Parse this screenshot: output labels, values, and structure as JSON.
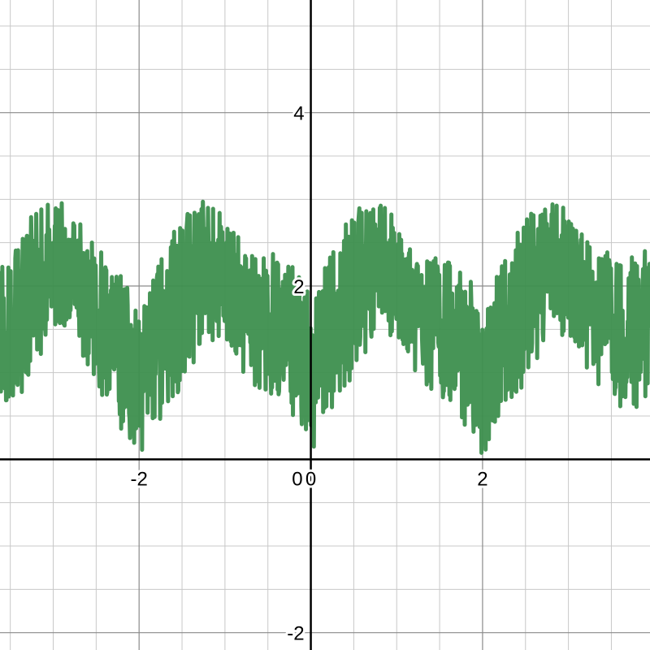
{
  "chart_data": {
    "type": "line",
    "title": "",
    "xlabel": "",
    "ylabel": "",
    "xlim": [
      -3.62,
      3.95
    ],
    "ylim": [
      -2.2,
      5.3
    ],
    "grid": true,
    "grid_minor_step": 0.5,
    "grid_major_step": 2,
    "x_tick_labels": [
      "-2",
      "0",
      "2"
    ],
    "y_tick_labels": [
      "-2",
      "2",
      "4"
    ],
    "origin_label": "0",
    "colors": {
      "series": "#3d8f4e",
      "axis": "#000000",
      "grid_major": "#8a8a8a",
      "grid_minor": "#c8c8c8"
    },
    "series": [
      {
        "name": "",
        "period": 2,
        "x": [
          -3.62,
          -3.5,
          -3.35,
          -3.2,
          -3.05,
          -2.9,
          -2.75,
          -2.6,
          -2.45,
          -2.3,
          -2.15,
          -2.0,
          -1.85,
          -1.7,
          -1.55,
          -1.4,
          -1.25,
          -1.1,
          -0.95,
          -0.8,
          -0.65,
          -0.5,
          -0.35,
          -0.2,
          -0.05,
          0.0,
          0.1,
          0.25,
          0.4,
          0.55,
          0.7,
          0.85,
          1.0,
          1.15,
          1.3,
          1.45,
          1.6,
          1.75,
          1.9,
          2.0,
          2.15,
          2.3,
          2.45,
          2.6,
          2.75,
          2.9,
          3.05,
          3.2,
          3.35,
          3.5,
          3.65,
          3.8,
          3.95
        ],
        "y_mean": [
          1.5,
          1.4,
          1.6,
          2.0,
          2.15,
          2.1,
          2.0,
          1.75,
          1.45,
          1.3,
          1.15,
          1.05,
          1.2,
          1.45,
          1.7,
          2.0,
          2.15,
          2.1,
          2.0,
          1.8,
          1.6,
          1.45,
          1.35,
          1.3,
          1.15,
          1.05,
          1.3,
          1.55,
          1.8,
          2.0,
          2.1,
          2.15,
          2.05,
          1.95,
          1.75,
          1.5,
          1.35,
          1.25,
          1.1,
          1.05,
          1.2,
          1.45,
          1.75,
          2.0,
          2.1,
          2.15,
          2.05,
          1.9,
          1.7,
          1.5,
          1.4,
          1.5,
          1.55
        ],
        "y_max": [
          2.2,
          2.3,
          2.7,
          2.9,
          2.95,
          3.0,
          2.9,
          2.6,
          2.4,
          2.2,
          2.05,
          1.6,
          2.05,
          2.45,
          2.7,
          2.95,
          3.0,
          2.9,
          2.7,
          2.55,
          2.35,
          2.35,
          2.4,
          2.2,
          2.05,
          1.5,
          2.1,
          2.4,
          2.7,
          2.95,
          3.0,
          2.95,
          2.75,
          2.45,
          2.3,
          2.35,
          2.4,
          2.2,
          2.05,
          1.5,
          2.1,
          2.4,
          2.7,
          2.95,
          3.0,
          2.95,
          2.8,
          2.55,
          2.35,
          2.45,
          2.3,
          2.45,
          2.4
        ],
        "y_min": [
          0.75,
          0.6,
          0.75,
          1.1,
          1.4,
          1.45,
          1.3,
          1.0,
          0.7,
          0.5,
          0.25,
          0.0,
          0.3,
          0.55,
          0.75,
          1.0,
          1.3,
          1.4,
          1.2,
          0.95,
          0.75,
          0.65,
          0.6,
          0.5,
          0.25,
          0.0,
          0.3,
          0.6,
          0.8,
          1.05,
          1.3,
          1.45,
          1.3,
          1.05,
          0.8,
          0.65,
          0.55,
          0.45,
          0.25,
          0.0,
          0.3,
          0.6,
          0.8,
          1.05,
          1.35,
          1.4,
          1.25,
          1.0,
          0.75,
          0.65,
          0.55,
          0.6,
          0.7
        ]
      }
    ]
  }
}
